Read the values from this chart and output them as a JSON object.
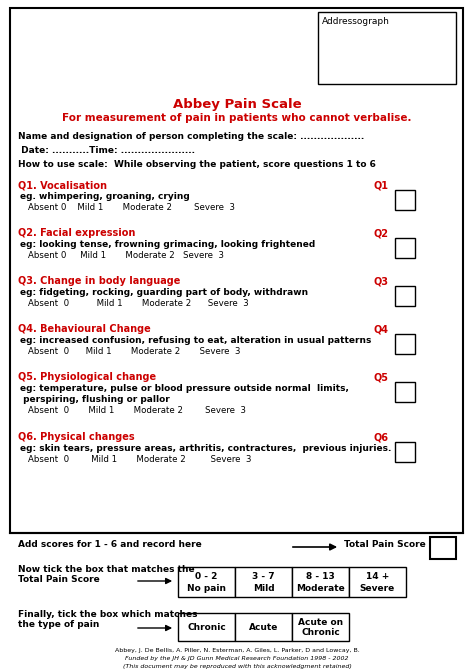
{
  "title1": "Abbey Pain Scale",
  "title2": "For measurement of pain in patients who cannot verbalise.",
  "addressograph": "Addressograph",
  "name_line": "Name and designation of person completing the scale: ...................",
  "date_line": " Date: ...........Time: ......................",
  "how_to": "How to use scale:  While observing the patient, score questions 1 to 6",
  "questions": [
    {
      "label": "Q1. Vocalisation",
      "code": "Q1",
      "desc": "eg. whimpering, groaning, crying",
      "scores": "Absent 0    Mild 1       Moderate 2        Severe  3"
    },
    {
      "label": "Q2. Facial expression",
      "code": "Q2",
      "desc": "eg: looking tense, frowning grimacing, looking frightened",
      "scores": "Absent 0     Mild 1       Moderate 2   Severe  3"
    },
    {
      "label": "Q3. Change in body language",
      "code": "Q3",
      "desc": "eg: fidgeting, rocking, guarding part of body, withdrawn",
      "scores": "Absent  0          Mild 1       Moderate 2      Severe  3"
    },
    {
      "label": "Q4. Behavioural Change",
      "code": "Q4",
      "desc": "eg: increased confusion, refusing to eat, alteration in usual patterns",
      "scores": "Absent  0      Mild 1       Moderate 2       Severe  3"
    },
    {
      "label": "Q5. Physiological change",
      "code": "Q5",
      "desc1": "eg: temperature, pulse or blood pressure outside normal  limits,",
      "desc2": " perspiring, flushing or pallor",
      "scores": "Absent  0       Mild 1       Moderate 2        Severe  3"
    },
    {
      "label": "Q6. Physical changes",
      "code": "Q6",
      "desc": "eg: skin tears, pressure areas, arthritis, contractures,  previous injuries.",
      "scores": "Absent  0        Mild 1       Moderate 2         Severe  3"
    }
  ],
  "score_boxes": [
    {
      "top": "0 - 2",
      "bot": "No pain"
    },
    {
      "top": "3 - 7",
      "bot": "Mild"
    },
    {
      "top": "8 - 13",
      "bot": "Moderate"
    },
    {
      "top": "14 +",
      "bot": "Severe"
    }
  ],
  "pain_types": [
    {
      "line1": "Chronic",
      "line2": ""
    },
    {
      "line1": "Acute",
      "line2": ""
    },
    {
      "line1": "Acute on",
      "line2": "Chronic"
    }
  ],
  "footer1": "Abbey, J. De Bellis, A. Piller, N. Esterman, A. Giles, L. Parker, D and Lowcay, B.",
  "footer2": "Funded by the JH & JD Gunn Medical Research Foundation 1998 - 2002",
  "footer3": "(This document may be reproduced with this acknowledgment retained)",
  "red_color": "#CC0000",
  "black_color": "#000000",
  "bg_color": "#FFFFFF"
}
